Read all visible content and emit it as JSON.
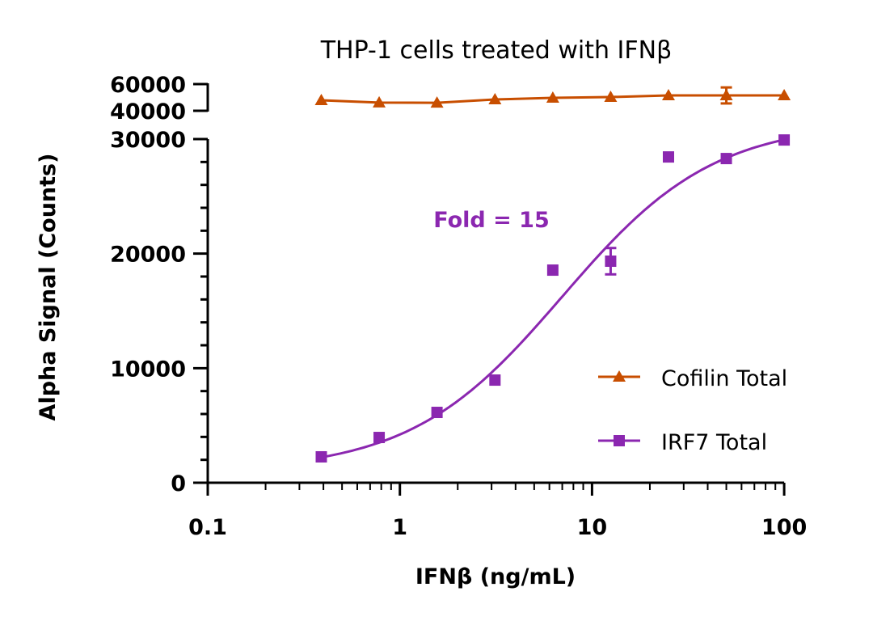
{
  "chart_data": {
    "type": "scatter",
    "title": "THP-1 cells treated with IFNβ",
    "xlabel": "IFNβ (ng/mL)",
    "ylabel": "Alpha Signal (Counts)",
    "x_scale": "log",
    "xlim": [
      0.1,
      100
    ],
    "x_ticks": [
      "0.1",
      "1",
      "10",
      "100"
    ],
    "y_axis_break": true,
    "ylim_lower": [
      0,
      30000
    ],
    "ylim_upper": [
      40000,
      60000
    ],
    "y_ticks_lower": [
      "0",
      "10000",
      "20000",
      "30000"
    ],
    "y_ticks_upper": [
      "40000",
      "60000"
    ],
    "grid": false,
    "legend_position": "right",
    "annotation": {
      "text": "Fold = 15",
      "color": "#8B27B0"
    },
    "x": [
      0.39,
      0.78,
      1.56,
      3.125,
      6.25,
      12.5,
      25,
      50,
      100
    ],
    "series": [
      {
        "name": "Cofilin Total",
        "color": "#C84E00",
        "marker": "triangle",
        "values": [
          47900,
          46100,
          46000,
          48500,
          49700,
          50300,
          51500,
          51500,
          51500
        ],
        "errors": [
          0,
          0,
          0,
          0,
          0,
          0,
          0,
          6000,
          0
        ]
      },
      {
        "name": "IRF7 Total",
        "color": "#8B27B0",
        "marker": "square",
        "values": [
          2260,
          3950,
          6140,
          8960,
          18560,
          19340,
          28440,
          28300,
          29920
        ],
        "errors": [
          0,
          0,
          0,
          0,
          0,
          1150,
          0,
          0,
          0
        ],
        "fit": {
          "model": "four-parameter logistic",
          "bottom": 1000,
          "top": 31500,
          "ec50": 7,
          "hill": 1.1
        }
      }
    ]
  }
}
